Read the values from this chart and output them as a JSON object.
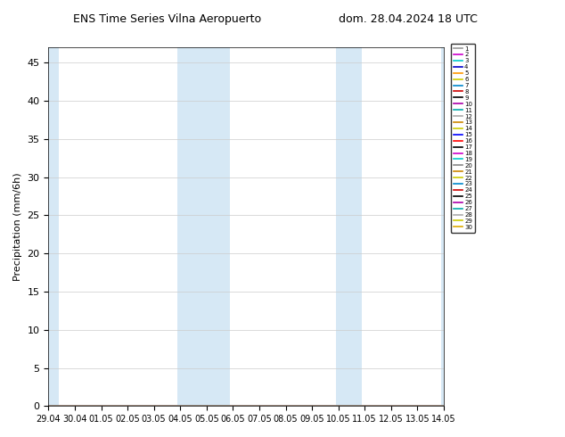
{
  "title_left": "ENS Time Series Vilna Aeropuerto",
  "title_right": "dom. 28.04.2024 18 UTC",
  "ylabel": "Precipitation (mm/6h)",
  "ylim": [
    0,
    47
  ],
  "yticks": [
    0,
    5,
    10,
    15,
    20,
    25,
    30,
    35,
    40,
    45
  ],
  "xtick_positions": [
    0,
    1,
    2,
    3,
    4,
    5,
    6,
    7,
    8,
    9,
    10,
    11,
    12,
    13,
    14,
    15
  ],
  "xtick_labels": [
    "29.04",
    "30.04",
    "01.05",
    "02.05",
    "03.05",
    "04.05",
    "05.05",
    "06.05",
    "07.05",
    "08.05",
    "09.05",
    "10.05",
    "11.05",
    "12.05",
    "13.05",
    "14.05"
  ],
  "xlim": [
    0,
    15
  ],
  "shaded_regions": [
    [
      0,
      0.4
    ],
    [
      4.9,
      6.9
    ],
    [
      10.9,
      11.9
    ],
    [
      14.9,
      15.0
    ]
  ],
  "shade_color": "#d6e8f5",
  "num_members": 30,
  "member_colors": [
    "#999999",
    "#cc00cc",
    "#00cccc",
    "#0000cc",
    "#ff9900",
    "#cccc00",
    "#0088cc",
    "#cc0000",
    "#000000",
    "#aa00aa",
    "#00aaaa",
    "#aaaaaa",
    "#cc8800",
    "#cccc00",
    "#0000ff",
    "#ff0000",
    "#000000",
    "#cc00cc",
    "#00cccc",
    "#888888",
    "#cc8800",
    "#cccc00",
    "#0088cc",
    "#cc0000",
    "#000000",
    "#aa00aa",
    "#00aaaa",
    "#aaaaaa",
    "#cccc00",
    "#ddaa00"
  ],
  "background_color": "#ffffff",
  "fig_width": 6.34,
  "fig_height": 4.9,
  "dpi": 100
}
